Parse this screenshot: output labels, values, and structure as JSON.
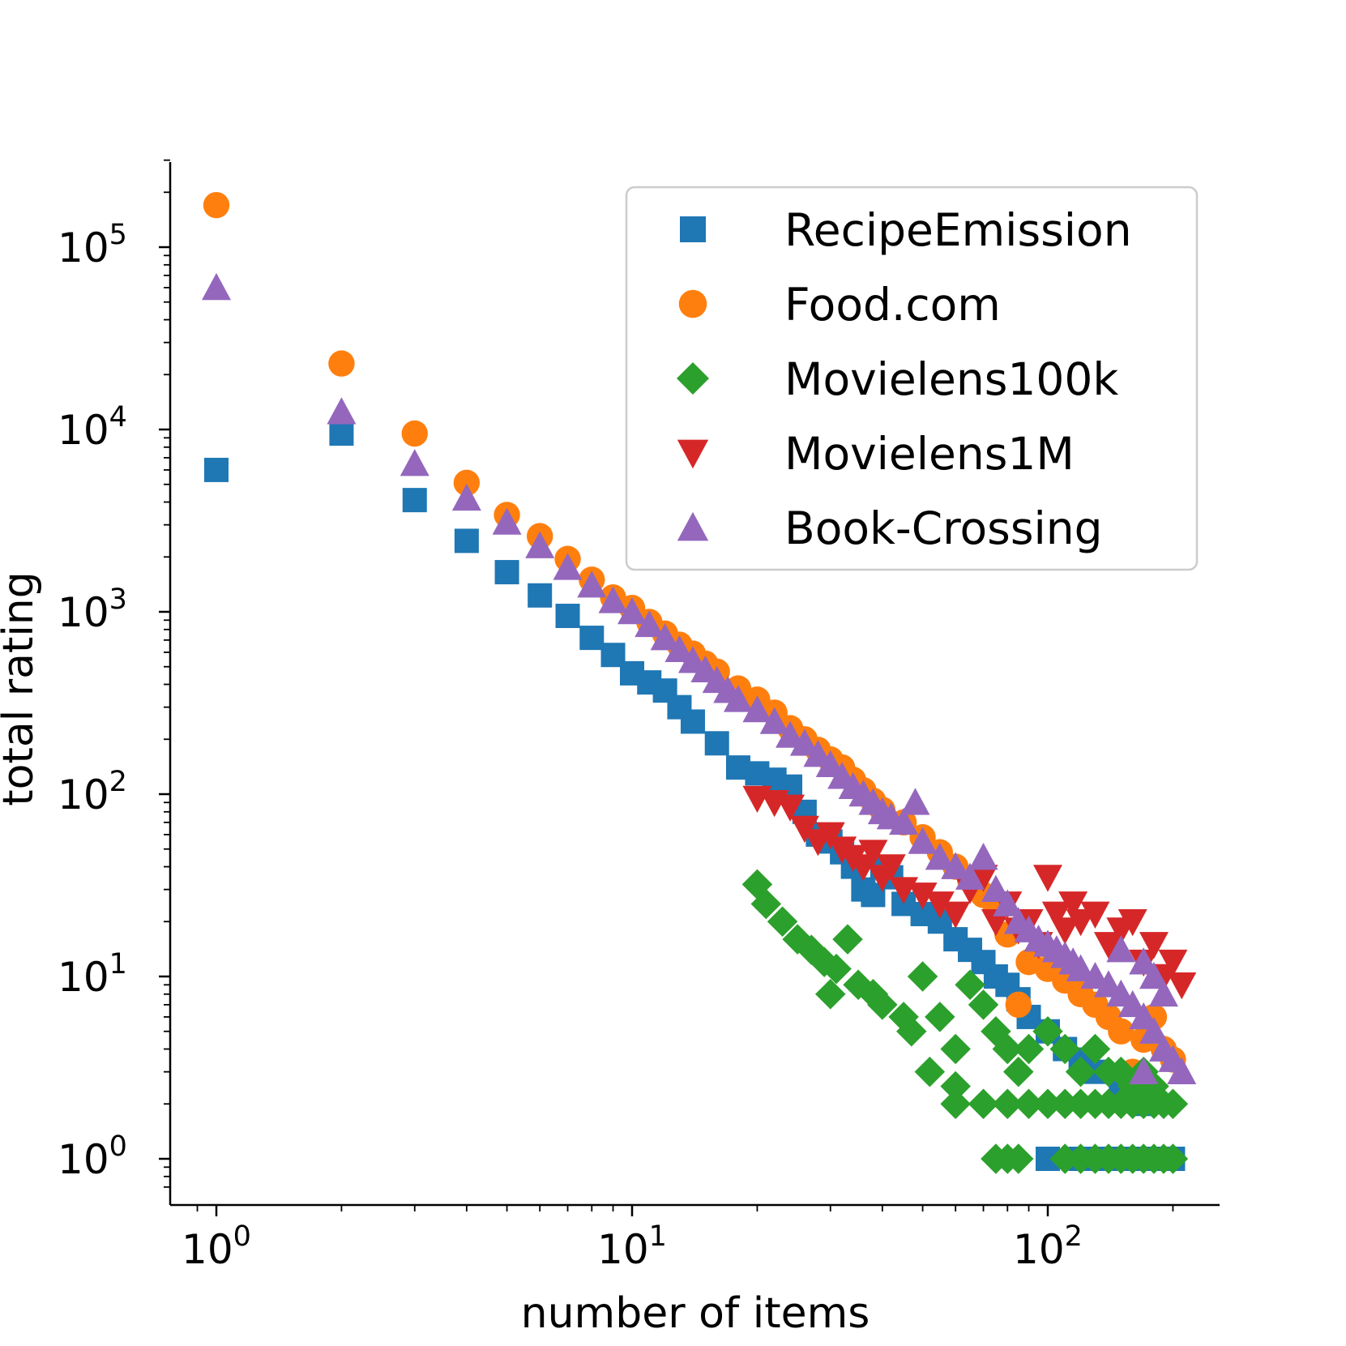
{
  "chart_data": {
    "type": "scatter",
    "title": "",
    "xlabel": "number of items",
    "ylabel": "total rating",
    "xscale": "log",
    "yscale": "log",
    "xlim": [
      0.88,
      260
    ],
    "ylim": [
      0.7,
      300000
    ],
    "x_ticks": [
      {
        "base": "10",
        "exp": "0"
      },
      {
        "base": "10",
        "exp": "1"
      },
      {
        "base": "10",
        "exp": "2"
      }
    ],
    "y_ticks": [
      {
        "base": "10",
        "exp": "0"
      },
      {
        "base": "10",
        "exp": "1"
      },
      {
        "base": "10",
        "exp": "2"
      },
      {
        "base": "10",
        "exp": "3"
      },
      {
        "base": "10",
        "exp": "4"
      },
      {
        "base": "10",
        "exp": "5"
      }
    ],
    "grid": false,
    "legend_position": "top-right",
    "series": [
      {
        "name": "RecipeEmission",
        "marker": "square",
        "color": "#1f77b4",
        "points": [
          [
            1,
            6000
          ],
          [
            2,
            9500
          ],
          [
            3,
            4100
          ],
          [
            4,
            2450
          ],
          [
            5,
            1650
          ],
          [
            6,
            1230
          ],
          [
            7,
            950
          ],
          [
            8,
            720
          ],
          [
            9,
            580
          ],
          [
            10,
            460
          ],
          [
            11,
            410
          ],
          [
            12,
            370
          ],
          [
            13,
            300
          ],
          [
            14,
            250
          ],
          [
            16,
            190
          ],
          [
            18,
            140
          ],
          [
            20,
            130
          ],
          [
            22,
            120
          ],
          [
            24,
            110
          ],
          [
            26,
            80
          ],
          [
            28,
            60
          ],
          [
            30,
            55
          ],
          [
            32,
            48
          ],
          [
            34,
            40
          ],
          [
            36,
            30
          ],
          [
            38,
            28
          ],
          [
            40,
            40
          ],
          [
            42,
            35
          ],
          [
            45,
            25
          ],
          [
            50,
            22
          ],
          [
            55,
            20
          ],
          [
            60,
            16
          ],
          [
            65,
            14
          ],
          [
            70,
            12
          ],
          [
            75,
            10
          ],
          [
            80,
            9
          ],
          [
            85,
            7.5
          ],
          [
            90,
            6
          ],
          [
            100,
            5
          ],
          [
            110,
            4
          ],
          [
            120,
            3.5
          ],
          [
            130,
            3
          ],
          [
            150,
            2.5
          ],
          [
            170,
            2
          ],
          [
            100,
            1
          ],
          [
            120,
            1
          ],
          [
            140,
            1
          ],
          [
            160,
            1
          ],
          [
            180,
            1
          ],
          [
            200,
            1
          ]
        ]
      },
      {
        "name": "Food.com",
        "marker": "circle",
        "color": "#ff7f0e",
        "points": [
          [
            1,
            170000
          ],
          [
            2,
            23000
          ],
          [
            3,
            9500
          ],
          [
            4,
            5100
          ],
          [
            5,
            3400
          ],
          [
            6,
            2600
          ],
          [
            7,
            1950
          ],
          [
            8,
            1500
          ],
          [
            9,
            1200
          ],
          [
            10,
            1050
          ],
          [
            11,
            880
          ],
          [
            12,
            760
          ],
          [
            13,
            660
          ],
          [
            14,
            590
          ],
          [
            15,
            520
          ],
          [
            16,
            470
          ],
          [
            18,
            380
          ],
          [
            20,
            330
          ],
          [
            22,
            280
          ],
          [
            24,
            230
          ],
          [
            26,
            200
          ],
          [
            28,
            175
          ],
          [
            30,
            155
          ],
          [
            32,
            140
          ],
          [
            34,
            120
          ],
          [
            36,
            105
          ],
          [
            38,
            92
          ],
          [
            40,
            82
          ],
          [
            45,
            70
          ],
          [
            50,
            58
          ],
          [
            55,
            48
          ],
          [
            60,
            40
          ],
          [
            65,
            34
          ],
          [
            70,
            28
          ],
          [
            75,
            24
          ],
          [
            80,
            17
          ],
          [
            85,
            7
          ],
          [
            90,
            12
          ],
          [
            100,
            11
          ],
          [
            110,
            9.5
          ],
          [
            120,
            8
          ],
          [
            130,
            7
          ],
          [
            140,
            6
          ],
          [
            150,
            5
          ],
          [
            170,
            4.5
          ],
          [
            190,
            4
          ],
          [
            200,
            3.5
          ],
          [
            180,
            6
          ],
          [
            160,
            3
          ]
        ]
      },
      {
        "name": "Movielens100k",
        "marker": "diamond",
        "color": "#2ca02c",
        "points": [
          [
            20,
            32
          ],
          [
            21,
            25
          ],
          [
            23,
            20
          ],
          [
            25,
            16
          ],
          [
            27,
            14
          ],
          [
            29,
            12
          ],
          [
            31,
            11
          ],
          [
            33,
            16
          ],
          [
            30,
            8
          ],
          [
            35,
            9
          ],
          [
            38,
            8
          ],
          [
            40,
            7
          ],
          [
            45,
            6
          ],
          [
            47,
            5
          ],
          [
            50,
            10
          ],
          [
            55,
            6
          ],
          [
            60,
            4
          ],
          [
            52,
            3
          ],
          [
            60,
            2.5
          ],
          [
            65,
            9
          ],
          [
            70,
            7
          ],
          [
            75,
            5
          ],
          [
            80,
            4
          ],
          [
            85,
            3
          ],
          [
            90,
            4
          ],
          [
            100,
            5
          ],
          [
            110,
            4
          ],
          [
            120,
            3
          ],
          [
            130,
            4
          ],
          [
            140,
            3
          ],
          [
            150,
            3
          ],
          [
            160,
            2.5
          ],
          [
            170,
            3
          ],
          [
            180,
            2.5
          ],
          [
            200,
            2
          ],
          [
            60,
            2
          ],
          [
            70,
            2
          ],
          [
            80,
            2
          ],
          [
            90,
            2
          ],
          [
            100,
            2
          ],
          [
            110,
            2
          ],
          [
            120,
            2
          ],
          [
            130,
            2
          ],
          [
            140,
            2
          ],
          [
            150,
            2
          ],
          [
            160,
            2
          ],
          [
            170,
            2
          ],
          [
            180,
            2
          ],
          [
            190,
            2
          ],
          [
            75,
            1
          ],
          [
            80,
            1
          ],
          [
            85,
            1
          ],
          [
            110,
            1
          ],
          [
            120,
            1
          ],
          [
            130,
            1
          ],
          [
            140,
            1
          ],
          [
            150,
            1
          ],
          [
            160,
            1
          ],
          [
            170,
            1
          ],
          [
            180,
            1
          ],
          [
            190,
            1
          ],
          [
            200,
            1
          ]
        ]
      },
      {
        "name": "Movielens1M",
        "marker": "triangle-down",
        "color": "#d62728",
        "points": [
          [
            20,
            95
          ],
          [
            22,
            90
          ],
          [
            24,
            85
          ],
          [
            26,
            65
          ],
          [
            28,
            55
          ],
          [
            30,
            60
          ],
          [
            32,
            50
          ],
          [
            34,
            45
          ],
          [
            36,
            40
          ],
          [
            38,
            48
          ],
          [
            40,
            35
          ],
          [
            42,
            40
          ],
          [
            45,
            30
          ],
          [
            50,
            28
          ],
          [
            55,
            25
          ],
          [
            60,
            22
          ],
          [
            65,
            30
          ],
          [
            70,
            35
          ],
          [
            75,
            20
          ],
          [
            80,
            25
          ],
          [
            85,
            18
          ],
          [
            90,
            20
          ],
          [
            95,
            15
          ],
          [
            100,
            35
          ],
          [
            105,
            22
          ],
          [
            110,
            18
          ],
          [
            115,
            25
          ],
          [
            120,
            20
          ],
          [
            130,
            22
          ],
          [
            140,
            15
          ],
          [
            150,
            18
          ],
          [
            160,
            20
          ],
          [
            170,
            12
          ],
          [
            180,
            15
          ],
          [
            190,
            10
          ],
          [
            200,
            12
          ],
          [
            210,
            9
          ]
        ]
      },
      {
        "name": "Book-Crossing",
        "marker": "triangle-up",
        "color": "#9467bd",
        "points": [
          [
            1,
            60000
          ],
          [
            2,
            12500
          ],
          [
            3,
            6500
          ],
          [
            4,
            4200
          ],
          [
            5,
            3100
          ],
          [
            6,
            2300
          ],
          [
            7,
            1750
          ],
          [
            8,
            1400
          ],
          [
            9,
            1150
          ],
          [
            10,
            1000
          ],
          [
            11,
            850
          ],
          [
            12,
            720
          ],
          [
            13,
            620
          ],
          [
            14,
            540
          ],
          [
            15,
            480
          ],
          [
            16,
            420
          ],
          [
            17,
            370
          ],
          [
            18,
            330
          ],
          [
            20,
            290
          ],
          [
            22,
            250
          ],
          [
            24,
            210
          ],
          [
            26,
            190
          ],
          [
            28,
            165
          ],
          [
            30,
            145
          ],
          [
            32,
            125
          ],
          [
            34,
            110
          ],
          [
            36,
            100
          ],
          [
            38,
            90
          ],
          [
            40,
            80
          ],
          [
            42,
            75
          ],
          [
            45,
            70
          ],
          [
            48,
            90
          ],
          [
            50,
            55
          ],
          [
            55,
            45
          ],
          [
            60,
            40
          ],
          [
            65,
            35
          ],
          [
            70,
            45
          ],
          [
            75,
            30
          ],
          [
            80,
            25
          ],
          [
            85,
            20
          ],
          [
            90,
            18
          ],
          [
            95,
            16
          ],
          [
            100,
            15
          ],
          [
            105,
            14
          ],
          [
            110,
            13
          ],
          [
            115,
            12
          ],
          [
            120,
            11
          ],
          [
            130,
            10
          ],
          [
            140,
            9
          ],
          [
            150,
            8
          ],
          [
            160,
            7
          ],
          [
            170,
            6
          ],
          [
            180,
            5
          ],
          [
            190,
            4
          ],
          [
            200,
            3.5
          ],
          [
            210,
            3
          ],
          [
            170,
            12
          ],
          [
            180,
            10
          ],
          [
            190,
            8
          ],
          [
            150,
            14
          ],
          [
            170,
            3
          ]
        ]
      }
    ]
  }
}
